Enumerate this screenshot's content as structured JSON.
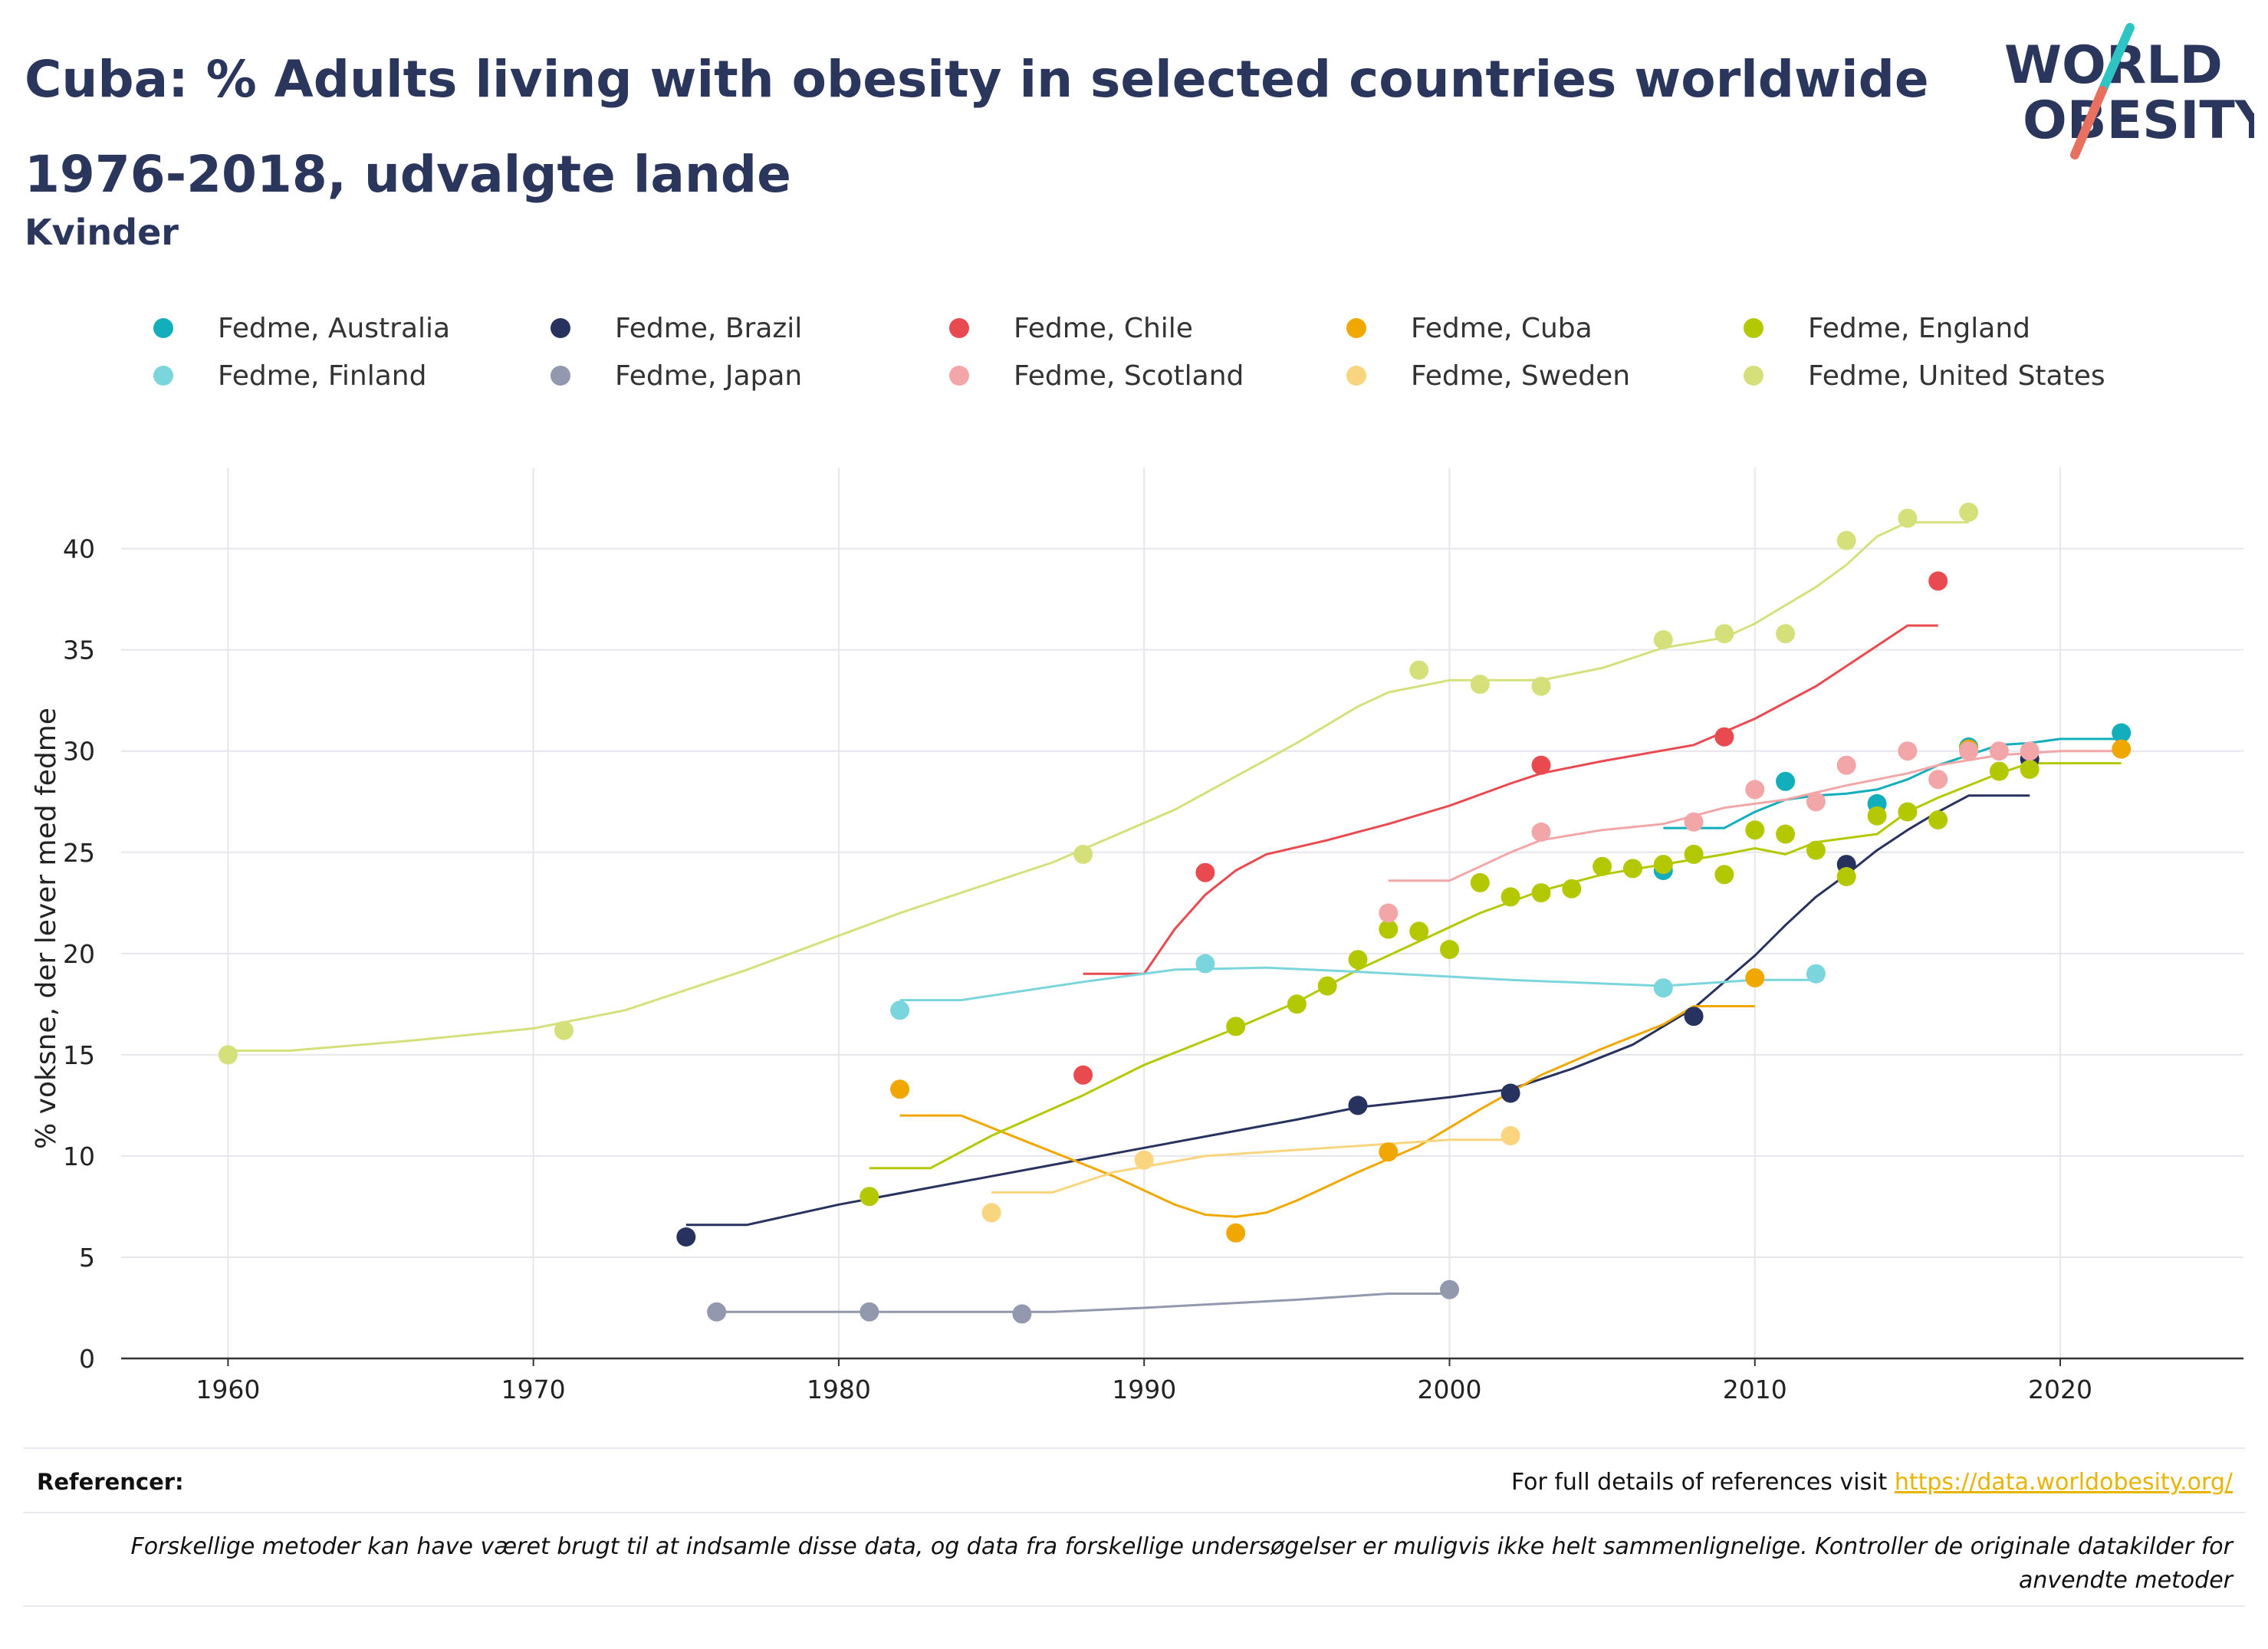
{
  "header": {
    "title_line1": "Cuba: % Adults living with obesity in selected countries worldwide",
    "title_line2": "1976-2018, udvalgte lande",
    "subtitle": "Kvinder",
    "logo_line1": "WORLD",
    "logo_line2": "OBESITY"
  },
  "footer": {
    "references_label": "Referencer:",
    "references_text": "For full details of references visit",
    "references_link": "https://data.worldobesity.org/",
    "note": "Forskellige metoder kan have været brugt til at indsamle disse data, og data fra forskellige undersøgelser er muligvis ikke helt sammenlignelige. Kontroller de originale datakilder for anvendte metoder"
  },
  "colors": {
    "title": "#2b365c",
    "grid": "#e6e6ec",
    "axis": "#333333",
    "logo_slash_top": "#2ec4c4",
    "logo_slash_bottom": "#e8705f"
  },
  "chart_data": {
    "type": "scatter",
    "title": "",
    "xlabel": "",
    "ylabel": "% voksne, der lever med fedme",
    "xlim": [
      1956.5,
      2026
    ],
    "ylim": [
      0,
      44
    ],
    "xticks": [
      1960,
      1970,
      1980,
      1990,
      2000,
      2010,
      2020
    ],
    "yticks": [
      0,
      5,
      10,
      15,
      20,
      25,
      30,
      35,
      40
    ],
    "grid": true,
    "legend_position": "top",
    "series": [
      {
        "name": "Fedme, Australia",
        "color": "#12aebb",
        "points": [
          [
            2007,
            24.1
          ],
          [
            2011,
            28.5
          ],
          [
            2014,
            27.4
          ],
          [
            2017,
            30.2
          ],
          [
            2022,
            30.9
          ]
        ],
        "trend": [
          [
            2007,
            26.2
          ],
          [
            2009,
            26.2
          ],
          [
            2010,
            27.0
          ],
          [
            2011,
            27.6
          ],
          [
            2012,
            27.8
          ],
          [
            2013,
            27.9
          ],
          [
            2014,
            28.1
          ],
          [
            2015,
            28.6
          ],
          [
            2016,
            29.3
          ],
          [
            2017,
            29.8
          ],
          [
            2018,
            30.3
          ],
          [
            2019,
            30.4
          ],
          [
            2020,
            30.6
          ],
          [
            2022,
            30.6
          ]
        ]
      },
      {
        "name": "Fedme, Brazil",
        "color": "#27325e",
        "points": [
          [
            1975,
            6.0
          ],
          [
            1997,
            12.5
          ],
          [
            2002,
            13.1
          ],
          [
            2008,
            16.9
          ],
          [
            2013,
            24.4
          ],
          [
            2019,
            29.6
          ]
        ],
        "trend": [
          [
            1975,
            6.6
          ],
          [
            1977,
            6.6
          ],
          [
            1980,
            7.6
          ],
          [
            1985,
            9.0
          ],
          [
            1990,
            10.4
          ],
          [
            1995,
            11.8
          ],
          [
            1997,
            12.4
          ],
          [
            2000,
            12.9
          ],
          [
            2002,
            13.3
          ],
          [
            2004,
            14.3
          ],
          [
            2006,
            15.5
          ],
          [
            2008,
            17.3
          ],
          [
            2010,
            19.9
          ],
          [
            2011,
            21.4
          ],
          [
            2012,
            22.8
          ],
          [
            2013,
            23.9
          ],
          [
            2014,
            25.1
          ],
          [
            2015,
            26.1
          ],
          [
            2016,
            27.0
          ],
          [
            2017,
            27.8
          ],
          [
            2019,
            27.8
          ]
        ]
      },
      {
        "name": "Fedme, Chile",
        "color": "#e84a4f",
        "points": [
          [
            1988,
            14.0
          ],
          [
            1992,
            24.0
          ],
          [
            2003,
            29.3
          ],
          [
            2009,
            30.7
          ],
          [
            2016,
            38.4
          ]
        ],
        "trend": [
          [
            1988,
            19.0
          ],
          [
            1990,
            19.0
          ],
          [
            1991,
            21.2
          ],
          [
            1992,
            22.9
          ],
          [
            1993,
            24.1
          ],
          [
            1994,
            24.9
          ],
          [
            1996,
            25.6
          ],
          [
            1998,
            26.4
          ],
          [
            2000,
            27.3
          ],
          [
            2002,
            28.4
          ],
          [
            2003,
            28.9
          ],
          [
            2005,
            29.5
          ],
          [
            2008,
            30.3
          ],
          [
            2010,
            31.6
          ],
          [
            2012,
            33.2
          ],
          [
            2014,
            35.2
          ],
          [
            2015,
            36.2
          ],
          [
            2016,
            36.2
          ]
        ]
      },
      {
        "name": "Fedme, Cuba",
        "color": "#f0a800",
        "points": [
          [
            1982,
            13.3
          ],
          [
            1993,
            6.2
          ],
          [
            1998,
            10.2
          ],
          [
            2010,
            18.8
          ],
          [
            2017,
            30.1
          ],
          [
            2022,
            30.1
          ]
        ],
        "trend": [
          [
            1982,
            12.0
          ],
          [
            1984,
            12.0
          ],
          [
            1986,
            10.8
          ],
          [
            1989,
            9.0
          ],
          [
            1991,
            7.6
          ],
          [
            1992,
            7.1
          ],
          [
            1993,
            7.0
          ],
          [
            1994,
            7.2
          ],
          [
            1995,
            7.8
          ],
          [
            1997,
            9.2
          ],
          [
            1999,
            10.5
          ],
          [
            2001,
            12.3
          ],
          [
            2003,
            14.0
          ],
          [
            2005,
            15.3
          ],
          [
            2007,
            16.5
          ],
          [
            2008,
            17.4
          ],
          [
            2010,
            17.4
          ]
        ]
      },
      {
        "name": "Fedme, England",
        "color": "#b4c800",
        "points": [
          [
            1981,
            8.0
          ],
          [
            1993,
            16.4
          ],
          [
            1995,
            17.5
          ],
          [
            1996,
            18.4
          ],
          [
            1997,
            19.7
          ],
          [
            1998,
            21.2
          ],
          [
            1999,
            21.1
          ],
          [
            2000,
            20.2
          ],
          [
            2001,
            23.5
          ],
          [
            2002,
            22.8
          ],
          [
            2003,
            23.0
          ],
          [
            2004,
            23.2
          ],
          [
            2005,
            24.3
          ],
          [
            2006,
            24.2
          ],
          [
            2007,
            24.4
          ],
          [
            2008,
            24.9
          ],
          [
            2009,
            23.9
          ],
          [
            2010,
            26.1
          ],
          [
            2011,
            25.9
          ],
          [
            2012,
            25.1
          ],
          [
            2013,
            23.8
          ],
          [
            2014,
            26.8
          ],
          [
            2015,
            27.0
          ],
          [
            2016,
            26.6
          ],
          [
            2018,
            29.0
          ],
          [
            2019,
            29.1
          ]
        ],
        "trend": [
          [
            1981,
            9.4
          ],
          [
            1983,
            9.4
          ],
          [
            1985,
            11.0
          ],
          [
            1988,
            13.0
          ],
          [
            1990,
            14.5
          ],
          [
            1993,
            16.3
          ],
          [
            1995,
            17.6
          ],
          [
            1997,
            19.2
          ],
          [
            1999,
            20.6
          ],
          [
            2001,
            22.0
          ],
          [
            2003,
            23.1
          ],
          [
            2005,
            23.9
          ],
          [
            2007,
            24.4
          ],
          [
            2009,
            24.9
          ],
          [
            2010,
            25.2
          ],
          [
            2011,
            24.9
          ],
          [
            2012,
            25.5
          ],
          [
            2014,
            25.9
          ],
          [
            2015,
            27.0
          ],
          [
            2016,
            27.7
          ],
          [
            2017,
            28.3
          ],
          [
            2018,
            28.9
          ],
          [
            2019,
            29.4
          ],
          [
            2022,
            29.4
          ]
        ]
      },
      {
        "name": "Fedme, Finland",
        "color": "#7ad6dc",
        "points": [
          [
            1982,
            17.2
          ],
          [
            1992,
            19.5
          ],
          [
            2007,
            18.3
          ],
          [
            2012,
            19.0
          ]
        ],
        "trend": [
          [
            1982,
            17.7
          ],
          [
            1984,
            17.7
          ],
          [
            1988,
            18.6
          ],
          [
            1991,
            19.2
          ],
          [
            1994,
            19.3
          ],
          [
            1997,
            19.1
          ],
          [
            2002,
            18.7
          ],
          [
            2007,
            18.4
          ],
          [
            2010,
            18.7
          ],
          [
            2012,
            18.7
          ]
        ]
      },
      {
        "name": "Fedme, Japan",
        "color": "#9299ae",
        "points": [
          [
            1976,
            2.3
          ],
          [
            1981,
            2.3
          ],
          [
            1986,
            2.2
          ],
          [
            2000,
            3.4
          ]
        ],
        "trend": [
          [
            1976,
            2.3
          ],
          [
            1987,
            2.3
          ],
          [
            1990,
            2.5
          ],
          [
            1995,
            2.9
          ],
          [
            1998,
            3.2
          ],
          [
            2000,
            3.2
          ]
        ]
      },
      {
        "name": "Fedme, Scotland",
        "color": "#f2a6a8",
        "points": [
          [
            1998,
            22.0
          ],
          [
            2003,
            26.0
          ],
          [
            2008,
            26.5
          ],
          [
            2010,
            28.1
          ],
          [
            2012,
            27.5
          ],
          [
            2013,
            29.3
          ],
          [
            2015,
            30.0
          ],
          [
            2016,
            28.6
          ],
          [
            2017,
            30.0
          ],
          [
            2018,
            30.0
          ],
          [
            2019,
            30.0
          ]
        ],
        "trend": [
          [
            1998,
            23.6
          ],
          [
            2000,
            23.6
          ],
          [
            2001,
            24.3
          ],
          [
            2002,
            25.0
          ],
          [
            2003,
            25.6
          ],
          [
            2005,
            26.1
          ],
          [
            2007,
            26.4
          ],
          [
            2009,
            27.2
          ],
          [
            2011,
            27.6
          ],
          [
            2013,
            28.3
          ],
          [
            2015,
            28.9
          ],
          [
            2016,
            29.3
          ],
          [
            2018,
            29.8
          ],
          [
            2020,
            30.0
          ],
          [
            2022,
            30.0
          ]
        ]
      },
      {
        "name": "Fedme, Sweden",
        "color": "#f8d57e",
        "points": [
          [
            1985,
            7.2
          ],
          [
            1990,
            9.8
          ],
          [
            2002,
            11.0
          ]
        ],
        "trend": [
          [
            1985,
            8.2
          ],
          [
            1987,
            8.2
          ],
          [
            1989,
            9.2
          ],
          [
            1992,
            10.0
          ],
          [
            1995,
            10.3
          ],
          [
            1998,
            10.6
          ],
          [
            2000,
            10.8
          ],
          [
            2002,
            10.8
          ]
        ]
      },
      {
        "name": "Fedme, United States",
        "color": "#d6e07a",
        "points": [
          [
            1960,
            15.0
          ],
          [
            1971,
            16.2
          ],
          [
            1988,
            24.9
          ],
          [
            1999,
            34.0
          ],
          [
            2001,
            33.3
          ],
          [
            2003,
            33.2
          ],
          [
            2007,
            35.5
          ],
          [
            2009,
            35.8
          ],
          [
            2011,
            35.8
          ],
          [
            2013,
            40.4
          ],
          [
            2015,
            41.5
          ],
          [
            2017,
            41.8
          ]
        ],
        "trend": [
          [
            1960,
            15.2
          ],
          [
            1962,
            15.2
          ],
          [
            1966,
            15.7
          ],
          [
            1970,
            16.3
          ],
          [
            1973,
            17.2
          ],
          [
            1977,
            19.2
          ],
          [
            1982,
            22.0
          ],
          [
            1987,
            24.5
          ],
          [
            1991,
            27.1
          ],
          [
            1995,
            30.4
          ],
          [
            1997,
            32.2
          ],
          [
            1998,
            32.9
          ],
          [
            2000,
            33.5
          ],
          [
            2003,
            33.5
          ],
          [
            2005,
            34.1
          ],
          [
            2007,
            35.1
          ],
          [
            2009,
            35.6
          ],
          [
            2010,
            36.3
          ],
          [
            2012,
            38.1
          ],
          [
            2013,
            39.2
          ],
          [
            2014,
            40.6
          ],
          [
            2015,
            41.3
          ],
          [
            2017,
            41.3
          ]
        ]
      }
    ]
  }
}
